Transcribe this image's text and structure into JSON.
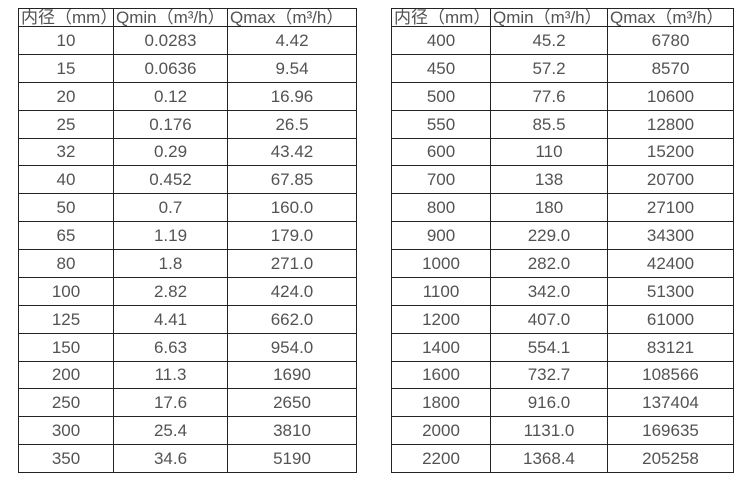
{
  "colors": {
    "background": "#ffffff",
    "border": "#232323",
    "text": "#535353"
  },
  "chart_data": [
    {
      "type": "table",
      "title": "",
      "columns": [
        "内径（mm）",
        "Qmin（m³/h）",
        "Qmax（m³/h）"
      ],
      "rows": [
        [
          "10",
          "0.0283",
          "4.42"
        ],
        [
          "15",
          "0.0636",
          "9.54"
        ],
        [
          "20",
          "0.12",
          "16.96"
        ],
        [
          "25",
          "0.176",
          "26.5"
        ],
        [
          "32",
          "0.29",
          "43.42"
        ],
        [
          "40",
          "0.452",
          "67.85"
        ],
        [
          "50",
          "0.7",
          "160.0"
        ],
        [
          "65",
          "1.19",
          "179.0"
        ],
        [
          "80",
          "1.8",
          "271.0"
        ],
        [
          "100",
          "2.82",
          "424.0"
        ],
        [
          "125",
          "4.41",
          "662.0"
        ],
        [
          "150",
          "6.63",
          "954.0"
        ],
        [
          "200",
          "11.3",
          "1690"
        ],
        [
          "250",
          "17.6",
          "2650"
        ],
        [
          "300",
          "25.4",
          "3810"
        ],
        [
          "350",
          "34.6",
          "5190"
        ]
      ]
    },
    {
      "type": "table",
      "title": "",
      "columns": [
        "内径（mm）",
        "Qmin（m³/h）",
        "Qmax（m³/h）"
      ],
      "rows": [
        [
          "400",
          "45.2",
          "6780"
        ],
        [
          "450",
          "57.2",
          "8570"
        ],
        [
          "500",
          "77.6",
          "10600"
        ],
        [
          "550",
          "85.5",
          "12800"
        ],
        [
          "600",
          "110",
          "15200"
        ],
        [
          "700",
          "138",
          "20700"
        ],
        [
          "800",
          "180",
          "27100"
        ],
        [
          "900",
          "229.0",
          "34300"
        ],
        [
          "1000",
          "282.0",
          "42400"
        ],
        [
          "1100",
          "342.0",
          "51300"
        ],
        [
          "1200",
          "407.0",
          "61000"
        ],
        [
          "1400",
          "554.1",
          "83121"
        ],
        [
          "1600",
          "732.7",
          "108566"
        ],
        [
          "1800",
          "916.0",
          "137404"
        ],
        [
          "2000",
          "1131.0",
          "169635"
        ],
        [
          "2200",
          "1368.4",
          "205258"
        ]
      ]
    }
  ]
}
